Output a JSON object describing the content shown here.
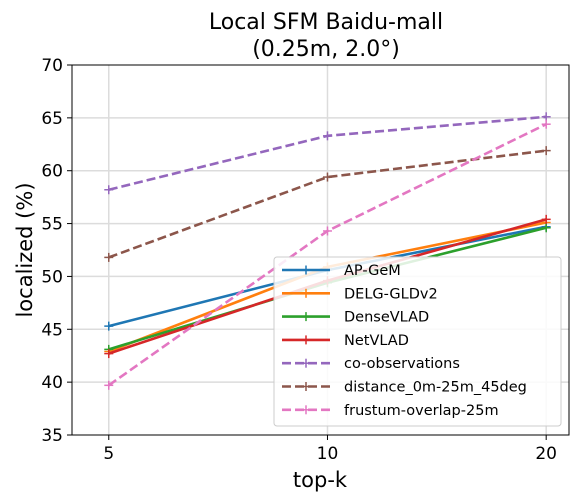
{
  "chart_data": {
    "type": "line",
    "title_line1": "Local SFM Baidu-mall",
    "title_line2": "(0.25m, 2.0°)",
    "xlabel": "top-k",
    "ylabel": "localized (%)",
    "x": [
      5,
      10,
      20
    ],
    "x_scale": "log",
    "xticks": [
      5,
      10,
      20
    ],
    "ylim": [
      35,
      70
    ],
    "yticks": [
      35,
      40,
      45,
      50,
      55,
      60,
      65,
      70
    ],
    "grid": true,
    "legend_position": "lower-right",
    "series": [
      {
        "name": "AP-GeM",
        "color": "#1f77b4",
        "dash": "solid",
        "values": [
          45.3,
          50.6,
          54.7
        ]
      },
      {
        "name": "DELG-GLDv2",
        "color": "#ff7f0e",
        "dash": "solid",
        "values": [
          42.9,
          50.9,
          55.1
        ]
      },
      {
        "name": "DenseVLAD",
        "color": "#2ca02c",
        "dash": "solid",
        "values": [
          43.1,
          49.4,
          54.6
        ]
      },
      {
        "name": "NetVLAD",
        "color": "#d62728",
        "dash": "solid",
        "values": [
          42.7,
          49.6,
          55.4
        ]
      },
      {
        "name": "co-observations",
        "color": "#9467bd",
        "dash": "dashed",
        "values": [
          58.2,
          63.3,
          65.1
        ]
      },
      {
        "name": "distance_0m-25m_45deg",
        "color": "#8c564b",
        "dash": "dashed",
        "values": [
          51.8,
          59.4,
          61.9
        ]
      },
      {
        "name": "frustum-overlap-25m",
        "color": "#e377c2",
        "dash": "dashed",
        "values": [
          39.7,
          54.3,
          64.4
        ]
      }
    ]
  }
}
